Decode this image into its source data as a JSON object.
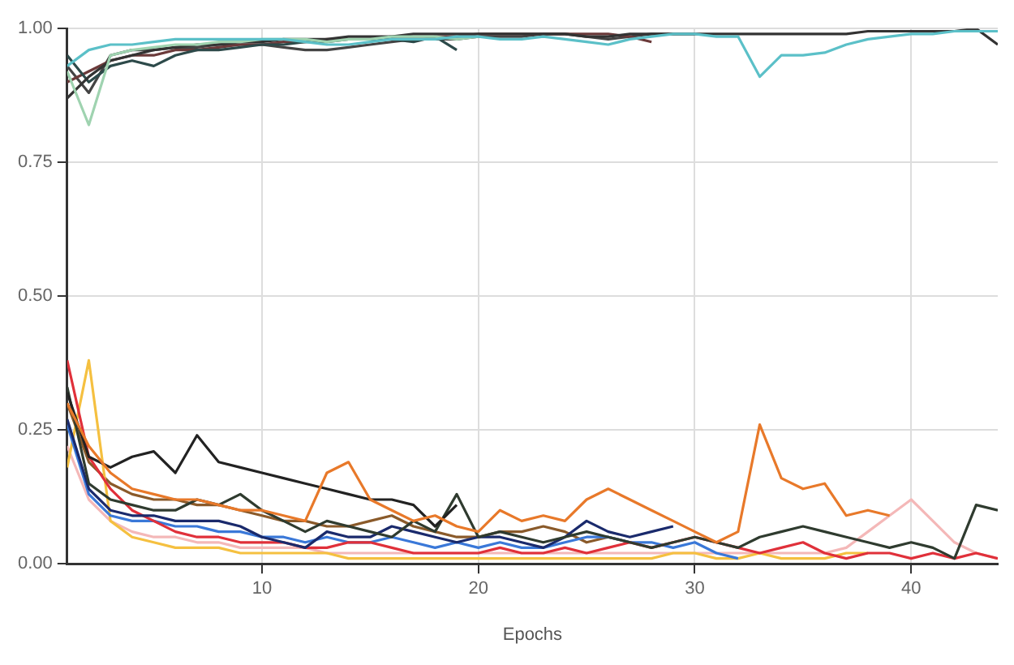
{
  "chart_data": {
    "type": "line",
    "xlabel": "Epochs",
    "x": [
      1,
      2,
      3,
      4,
      5,
      6,
      7,
      8,
      9,
      10,
      11,
      12,
      13,
      14,
      15,
      16,
      17,
      18,
      19,
      20,
      21,
      22,
      23,
      24,
      25,
      26,
      27,
      28,
      29,
      30,
      31,
      32,
      33,
      34,
      35,
      36,
      37,
      38,
      39,
      40,
      41,
      42,
      43,
      44
    ],
    "xlim": [
      1,
      44
    ],
    "xticks": [
      10,
      20,
      30,
      40
    ],
    "ylim": [
      0,
      1
    ],
    "yticks": [
      {
        "value": 0,
        "label": "0.00"
      },
      0.25,
      {
        "value": 0.5,
        "label": "0.50"
      },
      0.75,
      {
        "value": 1,
        "label": "1.00"
      }
    ],
    "grid": true,
    "legend": false,
    "marker": "none",
    "line_style": "solid",
    "series": [
      {
        "color": "#5bc0c8",
        "values": [
          0.93,
          0.96,
          0.97,
          0.97,
          0.975,
          0.98,
          0.98,
          0.98,
          0.98,
          0.98,
          0.98,
          0.975,
          0.97,
          0.97,
          0.975,
          0.98,
          0.98,
          0.98,
          0.985,
          0.985,
          0.98,
          0.98,
          0.985,
          0.98,
          0.975,
          0.97,
          0.98,
          0.985,
          0.99,
          0.99,
          0.985,
          0.985,
          0.91,
          0.95,
          0.95,
          0.955,
          0.97,
          0.98,
          0.985,
          0.99,
          0.99,
          0.995,
          0.995,
          0.995
        ]
      },
      {
        "color": "#9fd3b0",
        "values": [
          0.92,
          0.82,
          0.95,
          0.96,
          0.965,
          0.97,
          0.97,
          0.975,
          0.975,
          0.98,
          0.98,
          0.98,
          0.975,
          0.98,
          0.98,
          0.985,
          0.985,
          0.985,
          0.98,
          0.985,
          null,
          null,
          null,
          null,
          null,
          null,
          null,
          null,
          null,
          null,
          null,
          null,
          null,
          null,
          null,
          null,
          null,
          null,
          null,
          null,
          null,
          null,
          null,
          null
        ]
      },
      {
        "color": "#333333",
        "values": [
          0.87,
          0.91,
          0.94,
          0.95,
          0.96,
          0.965,
          0.97,
          0.97,
          0.975,
          0.975,
          0.98,
          0.98,
          0.98,
          0.985,
          0.985,
          0.985,
          0.99,
          0.99,
          0.99,
          0.99,
          0.99,
          0.99,
          0.99,
          0.99,
          0.985,
          0.985,
          0.99,
          0.99,
          0.99,
          0.99,
          0.99,
          0.99,
          0.99,
          0.99,
          0.99,
          0.99,
          0.99,
          0.995,
          0.995,
          0.995,
          0.995,
          0.995,
          1.0,
          0.97
        ]
      },
      {
        "color": "#2d4a4a",
        "values": [
          0.95,
          0.9,
          0.93,
          0.94,
          0.93,
          0.95,
          0.96,
          0.96,
          0.965,
          0.97,
          0.97,
          0.975,
          0.975,
          0.98,
          0.98,
          0.98,
          0.975,
          0.985,
          0.96,
          null,
          null,
          null,
          null,
          null,
          null,
          null,
          null,
          null,
          null,
          null,
          null,
          null,
          null,
          null,
          null,
          null,
          null,
          null,
          null,
          null,
          null,
          null,
          null,
          null
        ]
      },
      {
        "color": "#6b3a3a",
        "values": [
          0.9,
          0.92,
          0.94,
          0.95,
          0.95,
          0.96,
          0.96,
          0.965,
          0.97,
          0.97,
          0.975,
          0.975,
          0.98,
          0.98,
          0.98,
          0.985,
          0.985,
          0.985,
          0.985,
          0.99,
          0.99,
          0.99,
          0.99,
          0.99,
          0.99,
          0.99,
          0.985,
          0.975,
          null,
          null,
          null,
          null,
          null,
          null,
          null,
          null,
          null,
          null,
          null,
          null,
          null,
          null,
          null,
          null
        ]
      },
      {
        "color": "#444444",
        "values": [
          0.93,
          0.88,
          0.95,
          0.96,
          0.96,
          0.965,
          0.965,
          0.97,
          0.97,
          0.97,
          0.965,
          0.96,
          0.96,
          0.965,
          0.97,
          0.975,
          0.98,
          0.98,
          0.98,
          0.985,
          0.985,
          0.985,
          0.99,
          0.99,
          0.985,
          0.98,
          0.985,
          0.99,
          0.99,
          0.99,
          null,
          null,
          null,
          null,
          null,
          null,
          null,
          null,
          null,
          null,
          null,
          null,
          null,
          null
        ]
      },
      {
        "color": "#e8792a",
        "values": [
          0.3,
          0.22,
          0.17,
          0.14,
          0.13,
          0.12,
          0.12,
          0.11,
          0.1,
          0.1,
          0.09,
          0.08,
          0.17,
          0.19,
          0.12,
          0.1,
          0.08,
          0.09,
          0.07,
          0.06,
          0.1,
          0.08,
          0.09,
          0.08,
          0.12,
          0.14,
          0.12,
          0.1,
          0.08,
          0.06,
          0.04,
          0.06,
          0.26,
          0.16,
          0.14,
          0.15,
          0.09,
          0.1,
          0.09,
          null,
          null,
          null,
          null,
          null
        ]
      },
      {
        "color": "#222222",
        "values": [
          0.32,
          0.2,
          0.18,
          0.2,
          0.21,
          0.17,
          0.24,
          0.19,
          0.18,
          0.17,
          0.16,
          0.15,
          0.14,
          0.13,
          0.12,
          0.12,
          0.11,
          0.07,
          0.11,
          null,
          null,
          null,
          null,
          null,
          null,
          null,
          null,
          null,
          null,
          null,
          null,
          null,
          null,
          null,
          null,
          null,
          null,
          null,
          null,
          null,
          null,
          null,
          null,
          null
        ]
      },
      {
        "color": "#2f3b2f",
        "values": [
          0.33,
          0.15,
          0.12,
          0.11,
          0.1,
          0.1,
          0.12,
          0.11,
          0.13,
          0.1,
          0.08,
          0.06,
          0.08,
          0.07,
          0.06,
          0.05,
          0.08,
          0.06,
          0.13,
          0.05,
          0.06,
          0.05,
          0.04,
          0.05,
          0.06,
          0.05,
          0.04,
          0.03,
          0.04,
          0.05,
          0.04,
          0.03,
          0.05,
          0.06,
          0.07,
          0.06,
          0.05,
          0.04,
          0.03,
          0.04,
          0.03,
          0.01,
          0.11,
          0.1
        ]
      },
      {
        "color": "#1a2a6c",
        "values": [
          0.27,
          0.14,
          0.1,
          0.09,
          0.09,
          0.08,
          0.08,
          0.08,
          0.07,
          0.05,
          0.04,
          0.03,
          0.06,
          0.05,
          0.05,
          0.07,
          0.06,
          0.05,
          0.04,
          0.05,
          0.05,
          0.04,
          0.03,
          0.05,
          0.08,
          0.06,
          0.05,
          0.06,
          0.07,
          null,
          null,
          null,
          null,
          null,
          null,
          null,
          null,
          null,
          null,
          null,
          null,
          null,
          null,
          null
        ]
      },
      {
        "color": "#e0303a",
        "values": [
          0.38,
          0.2,
          0.14,
          0.1,
          0.08,
          0.06,
          0.05,
          0.05,
          0.04,
          0.04,
          0.04,
          0.03,
          0.03,
          0.04,
          0.04,
          0.03,
          0.02,
          0.02,
          0.02,
          0.02,
          0.03,
          0.02,
          0.02,
          0.03,
          0.02,
          0.03,
          0.04,
          0.03,
          0.04,
          0.05,
          0.04,
          0.03,
          0.02,
          0.03,
          0.04,
          0.02,
          0.01,
          0.02,
          0.02,
          0.01,
          0.02,
          0.01,
          0.02,
          0.01
        ]
      },
      {
        "color": "#3a78d8",
        "values": [
          0.26,
          0.13,
          0.09,
          0.08,
          0.08,
          0.07,
          0.07,
          0.06,
          0.06,
          0.05,
          0.05,
          0.04,
          0.05,
          0.04,
          0.04,
          0.05,
          0.04,
          0.03,
          0.04,
          0.03,
          0.04,
          0.03,
          0.03,
          0.04,
          0.05,
          0.05,
          0.04,
          0.04,
          0.03,
          0.04,
          0.02,
          0.01,
          null,
          null,
          null,
          null,
          null,
          null,
          null,
          null,
          null,
          null,
          null,
          null
        ]
      },
      {
        "color": "#f5c040",
        "values": [
          0.18,
          0.38,
          0.08,
          0.05,
          0.04,
          0.03,
          0.03,
          0.03,
          0.02,
          0.02,
          0.02,
          0.02,
          0.02,
          0.01,
          0.01,
          0.01,
          0.01,
          0.01,
          0.01,
          0.01,
          0.01,
          0.01,
          0.01,
          0.01,
          0.01,
          0.01,
          0.01,
          0.01,
          0.02,
          0.02,
          0.01,
          0.01,
          0.02,
          0.01,
          0.01,
          0.01,
          0.02,
          0.02,
          null,
          null,
          null,
          null,
          null,
          null
        ]
      },
      {
        "color": "#8a5a2a",
        "values": [
          0.3,
          0.19,
          0.15,
          0.13,
          0.12,
          0.12,
          0.11,
          0.11,
          0.1,
          0.09,
          0.08,
          0.08,
          0.07,
          0.07,
          0.08,
          0.09,
          0.07,
          0.06,
          0.05,
          0.05,
          0.06,
          0.06,
          0.07,
          0.06,
          0.04,
          0.05,
          0.04,
          null,
          null,
          null,
          null,
          null,
          null,
          null,
          null,
          null,
          null,
          null,
          null,
          null,
          null,
          null,
          null,
          null
        ]
      },
      {
        "color": "#f4b8b8",
        "values": [
          0.22,
          0.12,
          0.08,
          0.06,
          0.05,
          0.05,
          0.04,
          0.04,
          0.03,
          0.03,
          0.03,
          0.03,
          0.02,
          0.02,
          0.02,
          0.02,
          0.02,
          0.02,
          0.02,
          0.02,
          0.02,
          0.02,
          0.02,
          0.02,
          0.02,
          0.02,
          0.02,
          0.02,
          0.02,
          0.02,
          0.02,
          0.02,
          0.02,
          0.02,
          0.02,
          0.02,
          0.03,
          0.06,
          0.09,
          0.12,
          0.08,
          0.04,
          0.02,
          0.01
        ]
      }
    ]
  }
}
